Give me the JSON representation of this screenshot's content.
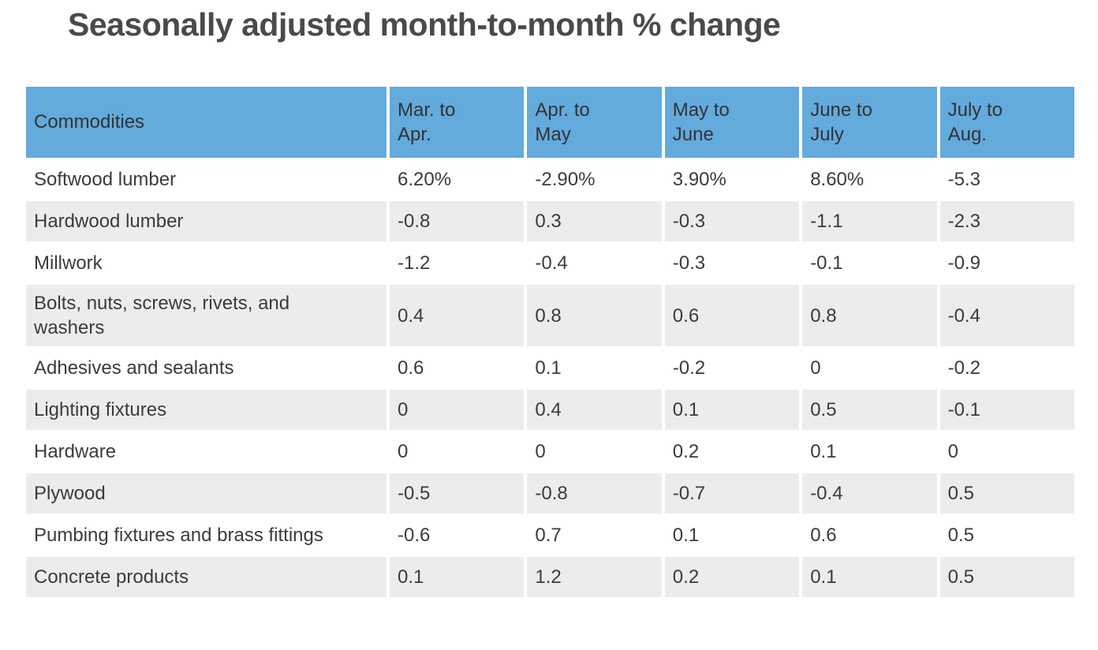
{
  "title": "Seasonally adjusted month-to-month % change",
  "colors": {
    "header_bg": "#63aadd",
    "row_bg": "#ffffff",
    "row_alt_bg": "#ececec",
    "text": "#3b3b3b",
    "title_text": "#4a4a4a"
  },
  "chart_data": {
    "type": "table",
    "title": "Seasonally adjusted month-to-month % change",
    "columns": [
      "Commodities",
      "Mar. to\nApr.",
      "Apr. to\nMay",
      "May to\nJune",
      "June to\nJuly",
      "July to\nAug."
    ],
    "rows": [
      {
        "commodity": "Softwood lumber",
        "values": [
          "6.20%",
          "-2.90%",
          "3.90%",
          "8.60%",
          "-5.3"
        ]
      },
      {
        "commodity": "Hardwood lumber",
        "values": [
          "-0.8",
          "0.3",
          "-0.3",
          "-1.1",
          "-2.3"
        ]
      },
      {
        "commodity": "Millwork",
        "values": [
          "-1.2",
          "-0.4",
          "-0.3",
          "-0.1",
          "-0.9"
        ]
      },
      {
        "commodity": "Bolts, nuts, screws, rivets, and washers",
        "values": [
          "0.4",
          "0.8",
          "0.6",
          "0.8",
          "-0.4"
        ]
      },
      {
        "commodity": "Adhesives and sealants",
        "values": [
          "0.6",
          "0.1",
          "-0.2",
          "0",
          "-0.2"
        ]
      },
      {
        "commodity": "Lighting fixtures",
        "values": [
          "0",
          "0.4",
          "0.1",
          "0.5",
          "-0.1"
        ]
      },
      {
        "commodity": "Hardware",
        "values": [
          "0",
          "0",
          "0.2",
          "0.1",
          "0"
        ]
      },
      {
        "commodity": "Plywood",
        "values": [
          "-0.5",
          "-0.8",
          "-0.7",
          "-0.4",
          "0.5"
        ]
      },
      {
        "commodity": "Pumbing fixtures and brass fittings",
        "values": [
          "-0.6",
          "0.7",
          "0.1",
          "0.6",
          "0.5"
        ]
      },
      {
        "commodity": "Concrete products",
        "values": [
          "0.1",
          "1.2",
          "0.2",
          "0.1",
          "0.5"
        ]
      }
    ],
    "layout": {
      "striped": true,
      "header_position": "top"
    }
  }
}
